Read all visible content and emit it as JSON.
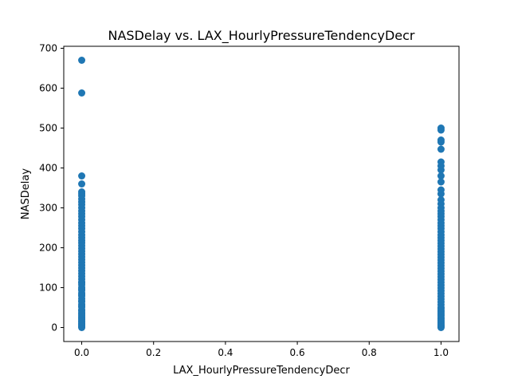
{
  "chart_data": {
    "type": "scatter",
    "title": "NASDelay vs. LAX_HourlyPressureTendencyDecr",
    "xlabel": "LAX_HourlyPressureTendencyDecr",
    "ylabel": "NASDelay",
    "xlim": [
      -0.05,
      1.05
    ],
    "ylim": [
      -35,
      705
    ],
    "x_ticks": [
      0.0,
      0.2,
      0.4,
      0.6,
      0.8,
      1.0
    ],
    "x_tick_labels": [
      "0.0",
      "0.2",
      "0.4",
      "0.6",
      "0.8",
      "1.0"
    ],
    "y_ticks": [
      0,
      100,
      200,
      300,
      400,
      500,
      600,
      700
    ],
    "y_tick_labels": [
      "0",
      "100",
      "200",
      "300",
      "400",
      "500",
      "600",
      "700"
    ],
    "grid": false,
    "marker_color": "#1f77b4",
    "series": [
      {
        "x": [
          0,
          0,
          0,
          0,
          0,
          0,
          0,
          0,
          0,
          0,
          0,
          0,
          0,
          0,
          0,
          0,
          0,
          0,
          0,
          0,
          0,
          0,
          0,
          0,
          0,
          0,
          0,
          0,
          0,
          0,
          0,
          0,
          0,
          0,
          0,
          0,
          0,
          0,
          0,
          0,
          0,
          0,
          0,
          0,
          0,
          0,
          0,
          0,
          0,
          0,
          0,
          0,
          0,
          0,
          0,
          0,
          0,
          0,
          0,
          0,
          0,
          0,
          0,
          0,
          0,
          0
        ],
        "y": [
          670,
          588,
          380,
          360,
          340,
          335,
          330,
          322,
          315,
          308,
          300,
          292,
          285,
          278,
          270,
          262,
          255,
          248,
          240,
          232,
          225,
          218,
          212,
          205,
          198,
          191,
          184,
          177,
          170,
          163,
          156,
          149,
          142,
          135,
          128,
          121,
          114,
          107,
          100,
          93,
          86,
          79,
          72,
          65,
          58,
          51,
          44,
          37,
          30,
          23,
          16,
          10,
          5,
          0,
          2,
          8,
          14,
          20,
          26,
          34,
          42,
          54,
          66,
          82,
          96,
          112
        ]
      },
      {
        "x": [
          1,
          1,
          1,
          1,
          1,
          1,
          1,
          1,
          1,
          1,
          1,
          1,
          1,
          1,
          1,
          1,
          1,
          1,
          1,
          1,
          1,
          1,
          1,
          1,
          1,
          1,
          1,
          1,
          1,
          1,
          1,
          1,
          1,
          1,
          1,
          1,
          1,
          1,
          1,
          1,
          1,
          1,
          1,
          1,
          1,
          1,
          1,
          1,
          1,
          1,
          1,
          1,
          1,
          1,
          1,
          1,
          1,
          1,
          1,
          1,
          1,
          1,
          1,
          1,
          1,
          1
        ],
        "y": [
          500,
          495,
          470,
          465,
          447,
          415,
          405,
          395,
          380,
          365,
          345,
          335,
          320,
          310,
          300,
          292,
          285,
          278,
          270,
          262,
          255,
          248,
          240,
          232,
          225,
          218,
          211,
          204,
          197,
          190,
          183,
          176,
          169,
          162,
          155,
          148,
          141,
          134,
          127,
          120,
          113,
          106,
          99,
          92,
          85,
          78,
          71,
          64,
          57,
          50,
          43,
          36,
          29,
          22,
          15,
          9,
          4,
          0,
          2,
          6,
          12,
          18,
          24,
          32,
          40,
          48
        ]
      }
    ]
  }
}
